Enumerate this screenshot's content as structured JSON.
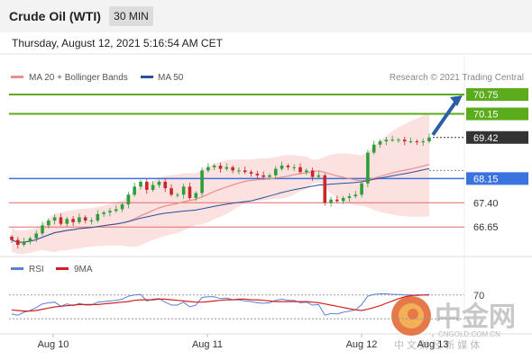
{
  "header": {
    "title": "Crude Oil (WTI)",
    "timeframe": "30 MIN"
  },
  "timestamp": "Thursday, August 12, 2021 5:16:54 AM CET",
  "legend_top": [
    {
      "label": "MA 20 + Bollinger Bands",
      "color": "#f08c8c"
    },
    {
      "label": "MA 50",
      "color": "#2a4f9e"
    }
  ],
  "legend_bottom": [
    {
      "label": "RSI",
      "color": "#5b7fd6"
    },
    {
      "label": "9MA",
      "color": "#d42020"
    }
  ],
  "credit": "Research © 2021 Trading Central",
  "watermark": {
    "text": "中金网",
    "sub": "CNGOLD.COM.CN",
    "tag": "中 文 财 经 新 媒 体"
  },
  "colors": {
    "resistance": "#5aac1c",
    "support_key": "#3a72e0",
    "support": "#e06a6a",
    "last": "#333333",
    "arrow": "#2a5fa8"
  },
  "chart_data": {
    "type": "candlestick",
    "title": "Crude Oil (WTI)",
    "interval": "30 MIN",
    "price_range": [
      66.1,
      71.0
    ],
    "last_price": 69.42,
    "levels": [
      {
        "value": 70.75,
        "label": "70.75",
        "kind": "resistance"
      },
      {
        "value": 70.15,
        "label": "70.15",
        "kind": "resistance"
      },
      {
        "value": 69.42,
        "label": "69.42",
        "kind": "last"
      },
      {
        "value": 68.15,
        "label": "68.15",
        "kind": "pivot"
      },
      {
        "value": 67.4,
        "label": "67.40",
        "kind": "support"
      },
      {
        "value": 66.65,
        "label": "66.65",
        "kind": "support"
      }
    ],
    "x_labels": [
      "Aug 10",
      "Aug 11",
      "Aug 12",
      "Aug 13"
    ],
    "close": [
      66.25,
      66.1,
      66.2,
      66.3,
      66.45,
      66.7,
      66.85,
      66.95,
      66.75,
      66.9,
      66.8,
      66.95,
      66.85,
      66.85,
      67.05,
      67.1,
      67.15,
      67.2,
      67.35,
      67.65,
      67.9,
      68.05,
      67.8,
      67.95,
      68.05,
      67.85,
      67.65,
      67.65,
      67.9,
      67.55,
      67.7,
      68.4,
      68.5,
      68.55,
      68.45,
      68.5,
      68.4,
      68.4,
      68.35,
      68.3,
      68.25,
      68.2,
      68.25,
      68.45,
      68.55,
      68.5,
      68.5,
      68.35,
      68.4,
      68.2,
      68.25,
      67.4,
      67.5,
      67.45,
      67.55,
      67.6,
      67.65,
      68.0,
      68.95,
      69.2,
      69.3,
      69.35,
      69.35,
      69.35,
      69.3,
      69.3,
      69.28,
      69.3,
      69.42
    ],
    "rsi_levels": [
      70,
      30
    ],
    "rsi": [
      38,
      36,
      41,
      44,
      49,
      55,
      57,
      58,
      51,
      55,
      52,
      56,
      53,
      53,
      58,
      59,
      60,
      61,
      63,
      68,
      70,
      71,
      60,
      63,
      64,
      58,
      53,
      53,
      58,
      50,
      53,
      66,
      67,
      67,
      64,
      65,
      62,
      62,
      60,
      59,
      57,
      56,
      57,
      61,
      63,
      61,
      61,
      57,
      58,
      53,
      54,
      36,
      39,
      38,
      41,
      43,
      45,
      54,
      68,
      71,
      72,
      72,
      71,
      71,
      70,
      70,
      69,
      70,
      71
    ],
    "rsi_ma": [
      45,
      44,
      43,
      43,
      44,
      46,
      48,
      50,
      51,
      52,
      53,
      54,
      54,
      54,
      54,
      55,
      56,
      57,
      58,
      59,
      61,
      62,
      62,
      62,
      63,
      63,
      62,
      61,
      60,
      59,
      58,
      58,
      59,
      60,
      61,
      62,
      62,
      63,
      63,
      62,
      62,
      61,
      60,
      59,
      59,
      59,
      59,
      59,
      59,
      58,
      57,
      55,
      53,
      51,
      49,
      47,
      45,
      44,
      46,
      49,
      52,
      56,
      60,
      64,
      67,
      69,
      70,
      70,
      70
    ]
  }
}
